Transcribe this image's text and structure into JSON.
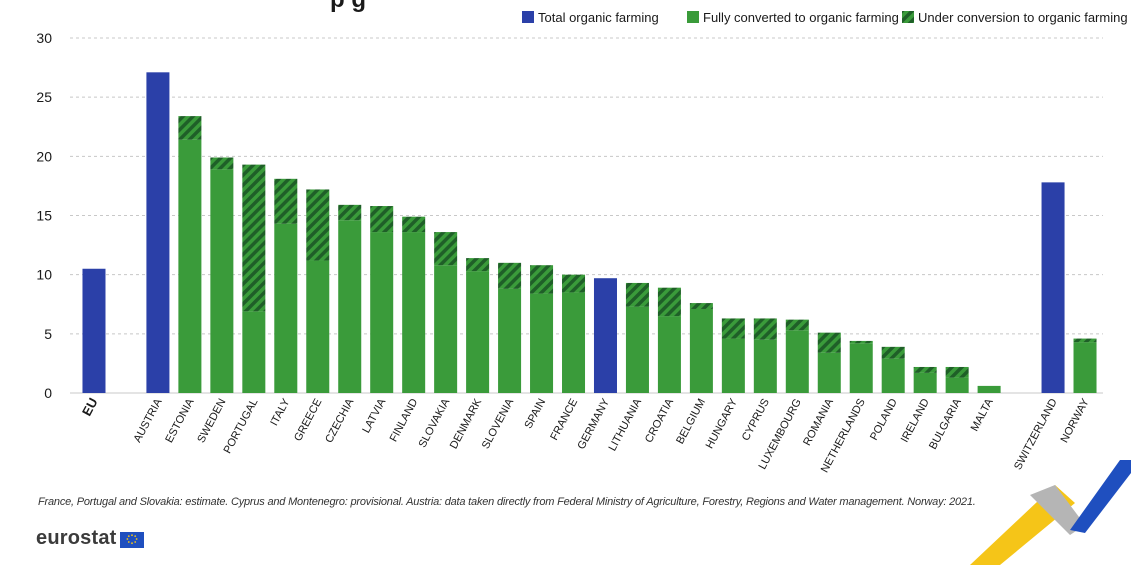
{
  "title_partial": "p                 g",
  "footnote": "France, Portugal and Slovakia: estimate. Cyprus and Montenegro: provisional. Austria: data taken directly from Federal Ministry of Agriculture, Forestry, Regions and Water management. Norway: 2021.",
  "logo_text": "eurostat",
  "colors": {
    "total": "#2b40a8",
    "fully": "#3a9b3a",
    "under_light": "#3a9b3a",
    "under_dark": "#1f5f28",
    "grid": "#c8c8c8",
    "axis_text": "#1a1a1a",
    "deco_yellow": "#f5c518",
    "deco_blue": "#1f4fbf",
    "deco_grey": "#b5b5b5"
  },
  "chart_data": {
    "type": "bar",
    "stacked": true,
    "ylim": [
      0,
      30
    ],
    "yticks": [
      0,
      5,
      10,
      15,
      20,
      25,
      30
    ],
    "grid": true,
    "legend_position": "top-right",
    "legend": [
      {
        "key": "total",
        "label": "Total organic farming",
        "icon": "solid-blue-square"
      },
      {
        "key": "fully",
        "label": "Fully converted to organic farming",
        "icon": "solid-green-square"
      },
      {
        "key": "under",
        "label": "Under conversion to organic farming",
        "icon": "hatched-green-square"
      }
    ],
    "categories": [
      {
        "label": "EU",
        "kind": "total",
        "total": 10.5,
        "bold": true
      },
      {
        "label": "",
        "gap": true
      },
      {
        "label": "AUSTRIA",
        "kind": "total",
        "total": 27.1
      },
      {
        "label": "ESTONIA",
        "kind": "split",
        "fully": 21.4,
        "under": 2.0
      },
      {
        "label": "SWEDEN",
        "kind": "split",
        "fully": 18.9,
        "under": 1.0
      },
      {
        "label": "PORTUGAL",
        "kind": "split",
        "fully": 6.9,
        "under": 12.4
      },
      {
        "label": "ITALY",
        "kind": "split",
        "fully": 14.3,
        "under": 3.8
      },
      {
        "label": "GREECE",
        "kind": "split",
        "fully": 11.2,
        "under": 6.0
      },
      {
        "label": "CZECHIA",
        "kind": "split",
        "fully": 14.6,
        "under": 1.3
      },
      {
        "label": "LATVIA",
        "kind": "split",
        "fully": 13.6,
        "under": 2.2
      },
      {
        "label": "FINLAND",
        "kind": "split",
        "fully": 13.6,
        "under": 1.3
      },
      {
        "label": "SLOVAKIA",
        "kind": "split",
        "fully": 10.8,
        "under": 2.8
      },
      {
        "label": "DENMARK",
        "kind": "split",
        "fully": 10.3,
        "under": 1.1
      },
      {
        "label": "SLOVENIA",
        "kind": "split",
        "fully": 8.8,
        "under": 2.2
      },
      {
        "label": "SPAIN",
        "kind": "split",
        "fully": 8.4,
        "under": 2.4
      },
      {
        "label": "FRANCE",
        "kind": "split",
        "fully": 8.5,
        "under": 1.5
      },
      {
        "label": "GERMANY",
        "kind": "total",
        "total": 9.7
      },
      {
        "label": "LITHUANIA",
        "kind": "split",
        "fully": 7.3,
        "under": 2.0
      },
      {
        "label": "CROATIA",
        "kind": "split",
        "fully": 6.5,
        "under": 2.4
      },
      {
        "label": "BELGIUM",
        "kind": "split",
        "fully": 7.1,
        "under": 0.5
      },
      {
        "label": "HUNGARY",
        "kind": "split",
        "fully": 4.6,
        "under": 1.7
      },
      {
        "label": "CYPRUS",
        "kind": "split",
        "fully": 4.5,
        "under": 1.8
      },
      {
        "label": "LUXEMBOURG",
        "kind": "split",
        "fully": 5.3,
        "under": 0.9
      },
      {
        "label": "ROMANIA",
        "kind": "split",
        "fully": 3.4,
        "under": 1.7
      },
      {
        "label": "NETHERLANDS",
        "kind": "split",
        "fully": 4.2,
        "under": 0.2
      },
      {
        "label": "POLAND",
        "kind": "split",
        "fully": 2.9,
        "under": 1.0
      },
      {
        "label": "IRELAND",
        "kind": "split",
        "fully": 1.7,
        "under": 0.5
      },
      {
        "label": "BULGARIA",
        "kind": "split",
        "fully": 1.3,
        "under": 0.9
      },
      {
        "label": "MALTA",
        "kind": "split",
        "fully": 0.6,
        "under": 0.0
      },
      {
        "label": "",
        "gap": true
      },
      {
        "label": "SWITZERLAND",
        "kind": "total",
        "total": 17.8
      },
      {
        "label": "NORWAY",
        "kind": "split",
        "fully": 4.3,
        "under": 0.3
      }
    ]
  }
}
